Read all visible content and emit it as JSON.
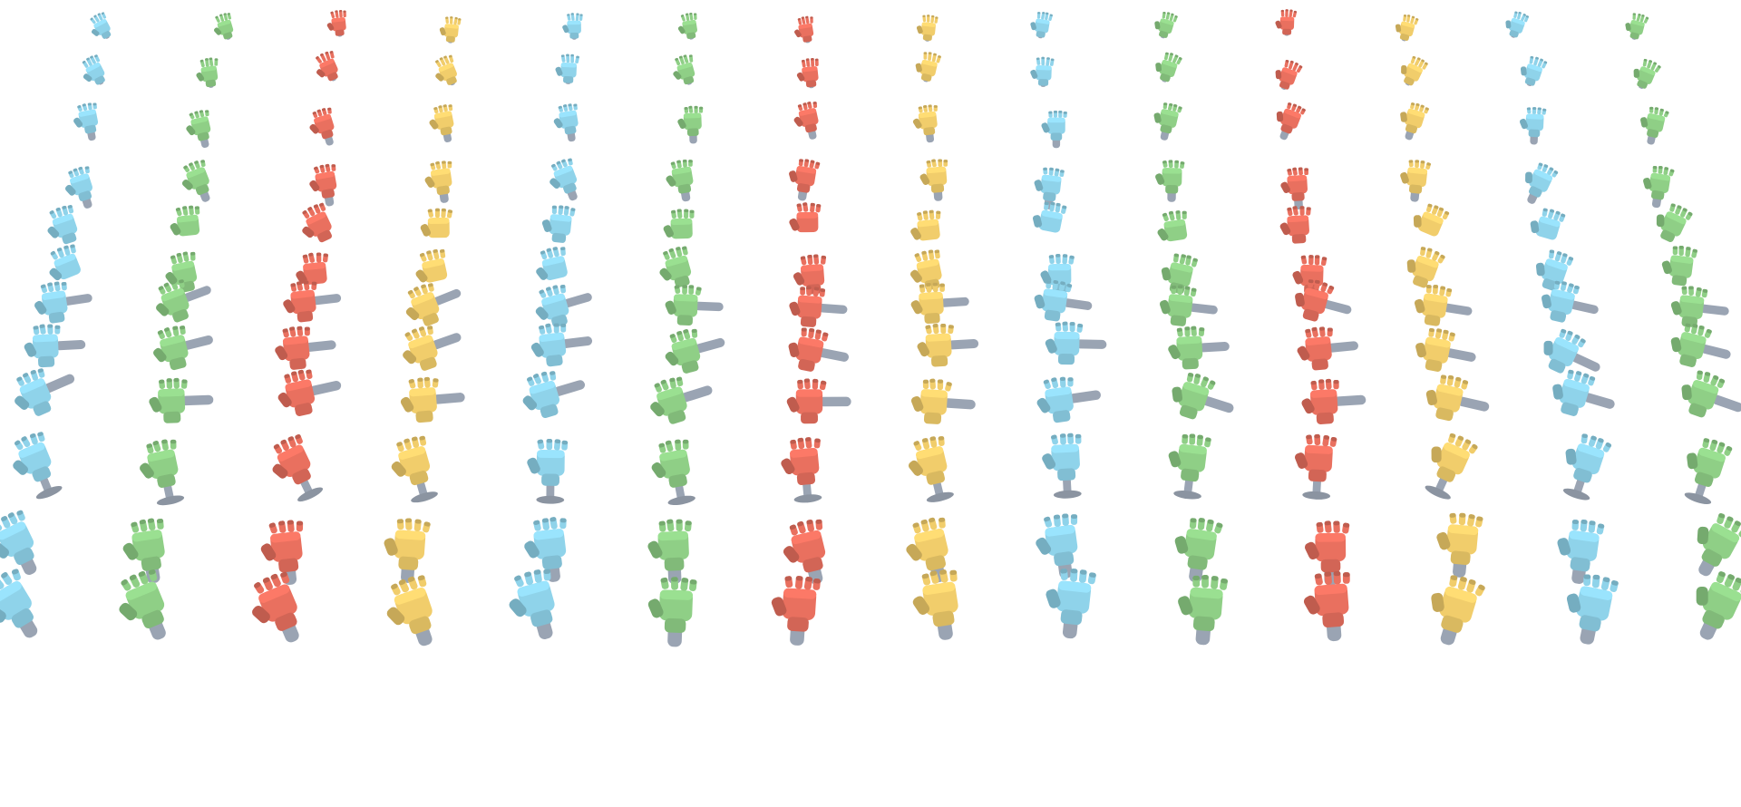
{
  "scene": {
    "subject": "robotic-hand-grasp-grid",
    "palette": {
      "background": "#ffffff",
      "blue": "#8fd3ea",
      "green": "#8fcf86",
      "red": "#e9705f",
      "yellow": "#f1cd6b",
      "object_gray": "#9aa4b3"
    },
    "bands": [
      {
        "rows": 1,
        "grip": "open-reach"
      },
      {
        "rows": 1,
        "grip": "wrap"
      },
      {
        "rows": 1,
        "grip": "wrap"
      },
      {
        "rows": 1,
        "grip": "pinch"
      },
      {
        "rows": 1,
        "grip": "pinch"
      },
      {
        "rows": 1,
        "grip": "side-grasp"
      },
      {
        "rows": 1,
        "grip": "side-grasp"
      },
      {
        "rows": 1,
        "grip": "pedestal"
      },
      {
        "rows": 1,
        "grip": "power"
      },
      {
        "rows": 1,
        "grip": "power"
      }
    ],
    "columns": 14,
    "color_cycle": [
      "blue",
      "green",
      "red",
      "yellow"
    ]
  }
}
